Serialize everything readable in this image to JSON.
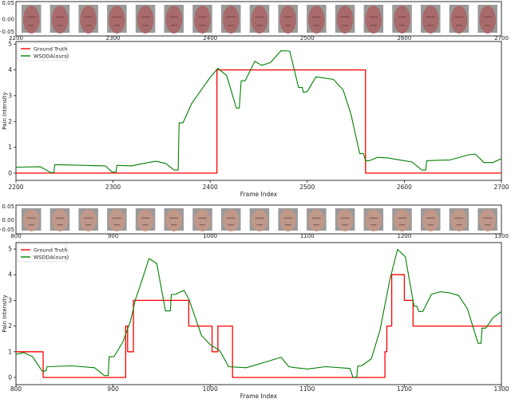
{
  "chart_data": [
    {
      "type": "line",
      "xlabel": "Frame Index",
      "ylabel": "Pain Intensity",
      "xlim": [
        2200,
        2700
      ],
      "ylim": [
        -0.28,
        5.1
      ],
      "xticks": [
        "2200",
        "2300",
        "2400",
        "2500",
        "2600",
        "2700"
      ],
      "yticks": [
        "0",
        "1",
        "2",
        "3",
        "4",
        "5"
      ],
      "face_strip": {
        "yticks": [
          "0.05",
          "0.00",
          "−0.05"
        ],
        "xticks": [
          "2200",
          "2300",
          "2400",
          "2500",
          "2600",
          "2700"
        ],
        "frames": 17,
        "skin": "#a86a6a"
      },
      "legend": {
        "placement": "top-left",
        "entries": [
          "Ground Truth",
          "WSDDA(ours)"
        ]
      },
      "series": [
        {
          "name": "Ground Truth",
          "color": "#ff0000",
          "points": [
            [
              2200,
              0
            ],
            [
              2407,
              0
            ],
            [
              2407,
              4
            ],
            [
              2560,
              4
            ],
            [
              2560,
              0
            ],
            [
              2700,
              0
            ]
          ]
        },
        {
          "name": "WSDDA(ours)",
          "color": "#008000",
          "points": [
            [
              2200,
              0.23
            ],
            [
              2225,
              0.25
            ],
            [
              2236,
              0.02
            ],
            [
              2239,
              0.02
            ],
            [
              2240,
              0.33
            ],
            [
              2292,
              0.28
            ],
            [
              2299,
              0.04
            ],
            [
              2303,
              0.04
            ],
            [
              2304,
              0.3
            ],
            [
              2319,
              0.28
            ],
            [
              2329,
              0.36
            ],
            [
              2344,
              0.46
            ],
            [
              2354,
              0.38
            ],
            [
              2363,
              0.12
            ],
            [
              2367,
              0.12
            ],
            [
              2368,
              1.95
            ],
            [
              2372,
              1.95
            ],
            [
              2381,
              2.7
            ],
            [
              2400,
              3.71
            ],
            [
              2408,
              4.06
            ],
            [
              2417,
              3.78
            ],
            [
              2427,
              2.52
            ],
            [
              2430,
              2.52
            ],
            [
              2432,
              3.58
            ],
            [
              2436,
              3.58
            ],
            [
              2446,
              4.33
            ],
            [
              2453,
              4.18
            ],
            [
              2462,
              4.28
            ],
            [
              2473,
              4.74
            ],
            [
              2482,
              4.73
            ],
            [
              2491,
              3.32
            ],
            [
              2495,
              3.32
            ],
            [
              2496,
              3.13
            ],
            [
              2500,
              3.16
            ],
            [
              2509,
              3.73
            ],
            [
              2527,
              3.63
            ],
            [
              2537,
              3.22
            ],
            [
              2545,
              2.29
            ],
            [
              2554,
              0.76
            ],
            [
              2558,
              0.76
            ],
            [
              2560,
              0.48
            ],
            [
              2564,
              0.48
            ],
            [
              2572,
              0.61
            ],
            [
              2583,
              0.59
            ],
            [
              2608,
              0.43
            ],
            [
              2618,
              0.12
            ],
            [
              2622,
              0.12
            ],
            [
              2623,
              0.48
            ],
            [
              2635,
              0.5
            ],
            [
              2647,
              0.51
            ],
            [
              2655,
              0.59
            ],
            [
              2666,
              0.71
            ],
            [
              2673,
              0.74
            ],
            [
              2682,
              0.41
            ],
            [
              2691,
              0.41
            ],
            [
              2700,
              0.56
            ]
          ]
        }
      ]
    },
    {
      "type": "line",
      "xlabel": "Frame Index",
      "ylabel": "Pain Intensity",
      "xlim": [
        800,
        1300
      ],
      "ylim": [
        -0.28,
        5.25
      ],
      "xticks": [
        "800",
        "900",
        "1000",
        "1100",
        "1200",
        "1300"
      ],
      "yticks": [
        "0",
        "1",
        "2",
        "3",
        "4",
        "5"
      ],
      "face_strip": {
        "yticks": [
          "0.05",
          "0.00",
          "−0.05"
        ],
        "xticks": [
          "800",
          "900",
          "1000",
          "1100",
          "1200",
          "1300"
        ],
        "frames": 17,
        "skin": "#c0988a"
      },
      "legend": {
        "placement": "top-left",
        "entries": [
          "Ground Truth",
          "WSDDA(ours)"
        ]
      },
      "series": [
        {
          "name": "Ground Truth",
          "color": "#ff0000",
          "points": [
            [
              800,
              1
            ],
            [
              828,
              1
            ],
            [
              828,
              0
            ],
            [
              913,
              0
            ],
            [
              913,
              2
            ],
            [
              915,
              2
            ],
            [
              915,
              1
            ],
            [
              921,
              1
            ],
            [
              921,
              3
            ],
            [
              978,
              3
            ],
            [
              978,
              2
            ],
            [
              1002,
              2
            ],
            [
              1002,
              1
            ],
            [
              1008,
              1
            ],
            [
              1008,
              2
            ],
            [
              1023,
              2
            ],
            [
              1023,
              0
            ],
            [
              1180,
              0
            ],
            [
              1180,
              1
            ],
            [
              1182,
              1
            ],
            [
              1182,
              2
            ],
            [
              1187,
              2
            ],
            [
              1187,
              4
            ],
            [
              1200,
              4
            ],
            [
              1200,
              3
            ],
            [
              1209,
              3
            ],
            [
              1209,
              2
            ],
            [
              1300,
              2
            ]
          ]
        },
        {
          "name": "WSDDA(ours)",
          "color": "#008000",
          "points": [
            [
              800,
              0.9
            ],
            [
              808,
              0.97
            ],
            [
              817,
              0.81
            ],
            [
              827,
              0.25
            ],
            [
              831,
              0.25
            ],
            [
              832,
              0.42
            ],
            [
              858,
              0.45
            ],
            [
              881,
              0.38
            ],
            [
              891,
              0.07
            ],
            [
              895,
              0.07
            ],
            [
              896,
              0.81
            ],
            [
              901,
              0.81
            ],
            [
              910,
              1.38
            ],
            [
              918,
              2.2
            ],
            [
              923,
              3.03
            ],
            [
              929,
              3.7
            ],
            [
              937,
              4.63
            ],
            [
              945,
              4.44
            ],
            [
              954,
              2.59
            ],
            [
              959,
              2.59
            ],
            [
              960,
              3.23
            ],
            [
              964,
              3.23
            ],
            [
              973,
              3.39
            ],
            [
              978,
              3.06
            ],
            [
              991,
              1.64
            ],
            [
              1000,
              1.28
            ],
            [
              1010,
              1.04
            ],
            [
              1019,
              0.42
            ],
            [
              1037,
              0.38
            ],
            [
              1058,
              0.61
            ],
            [
              1073,
              0.79
            ],
            [
              1081,
              0.42
            ],
            [
              1088,
              0.38
            ],
            [
              1100,
              0.33
            ],
            [
              1119,
              0.42
            ],
            [
              1144,
              0.35
            ],
            [
              1147,
              0.01
            ],
            [
              1151,
              0.01
            ],
            [
              1152,
              0.45
            ],
            [
              1156,
              0.45
            ],
            [
              1166,
              0.73
            ],
            [
              1175,
              1.85
            ],
            [
              1185,
              3.8
            ],
            [
              1193,
              4.99
            ],
            [
              1201,
              4.7
            ],
            [
              1210,
              2.77
            ],
            [
              1213,
              2.77
            ],
            [
              1215,
              2.57
            ],
            [
              1219,
              2.57
            ],
            [
              1228,
              3.24
            ],
            [
              1237,
              3.34
            ],
            [
              1247,
              3.29
            ],
            [
              1256,
              3.19
            ],
            [
              1265,
              2.67
            ],
            [
              1276,
              1.33
            ],
            [
              1279,
              1.33
            ],
            [
              1280,
              1.92
            ],
            [
              1284,
              1.92
            ],
            [
              1291,
              2.31
            ],
            [
              1300,
              2.57
            ]
          ]
        }
      ]
    }
  ]
}
